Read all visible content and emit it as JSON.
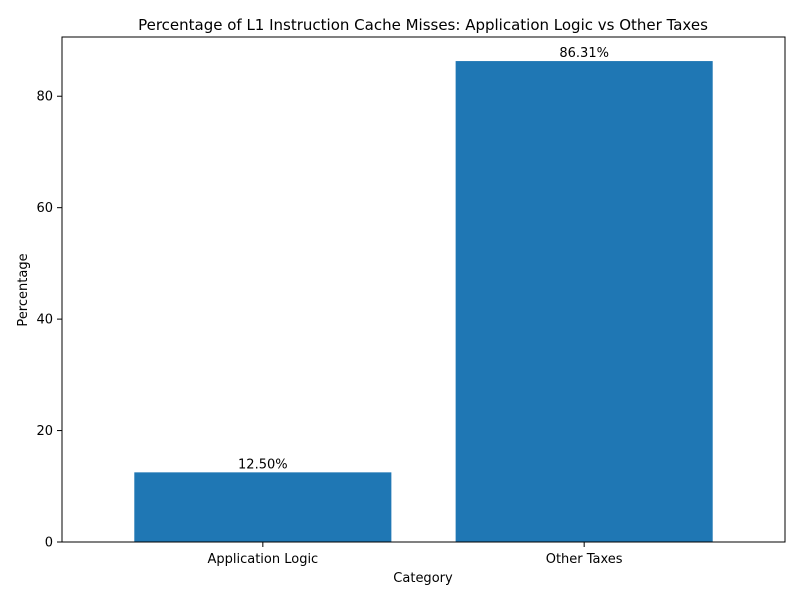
{
  "chart_data": {
    "type": "bar",
    "title": "Percentage of L1 Instruction Cache Misses: Application Logic vs Other Taxes",
    "xlabel": "Category",
    "ylabel": "Percentage",
    "categories": [
      "Application Logic",
      "Other Taxes"
    ],
    "values": [
      12.5,
      86.31
    ],
    "data_labels": [
      "12.50%",
      "86.31%"
    ],
    "ylim": [
      0,
      90.63
    ],
    "yticks": [
      0,
      20,
      40,
      60,
      80
    ],
    "ytick_labels": [
      "0",
      "20",
      "40",
      "60",
      "80"
    ],
    "grid": false,
    "legend": "none",
    "bar_color": "#1f77b4"
  }
}
